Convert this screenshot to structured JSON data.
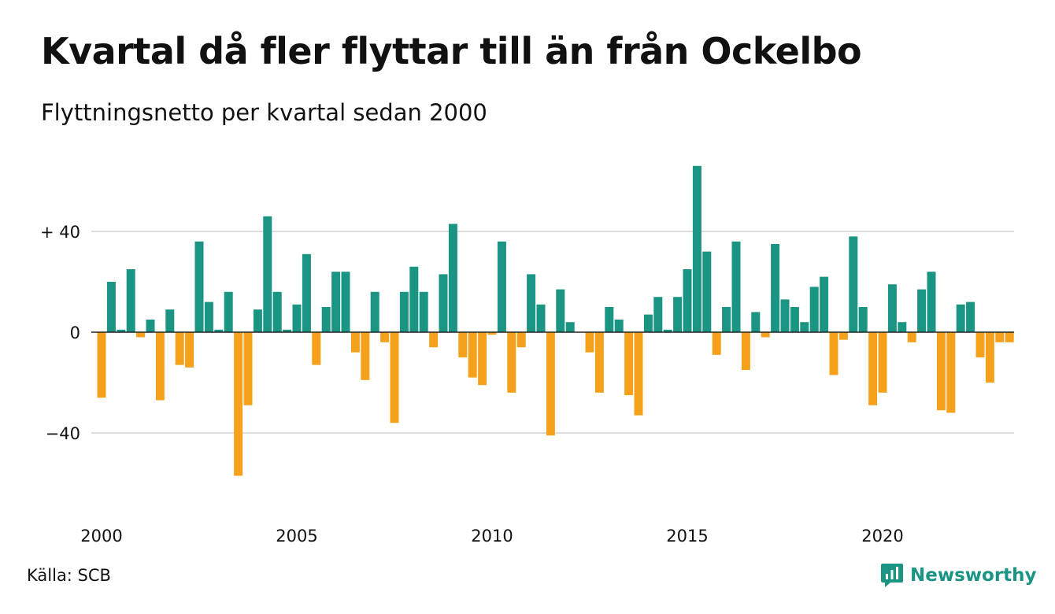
{
  "title": "Kvartal då fler flyttar till än från Ockelbo",
  "subtitle": "Flyttningsnetto per kvartal sedan 2000",
  "source": "Källa: SCB",
  "brand": {
    "label": "Newsworthy",
    "icon": "newsworthy-logo-icon",
    "color": "#1a9483"
  },
  "colors": {
    "positive": "#1a9483",
    "negative": "#f5a11c",
    "grid": "#dddddd",
    "zero_line": "#222222"
  },
  "chart_data": {
    "type": "bar",
    "title": "Kvartal då fler flyttar till än från Ockelbo",
    "subtitle": "Flyttningsnetto per kvartal sedan 2000",
    "xlabel": "",
    "ylabel": "",
    "start": "2000 Q1",
    "x_ticks": [
      "2000",
      "2005",
      "2010",
      "2015",
      "2020"
    ],
    "y_ticks": [
      {
        "value": 40,
        "label": "+ 40"
      },
      {
        "value": 0,
        "label": "0"
      },
      {
        "value": -40,
        "label": "−40"
      }
    ],
    "ylim": [
      -62,
      75
    ],
    "grid": true,
    "legend": "none",
    "values": [
      -26,
      20,
      1,
      25,
      -2,
      5,
      -27,
      9,
      -13,
      -14,
      36,
      12,
      1,
      16,
      -57,
      -29,
      9,
      46,
      16,
      1,
      11,
      31,
      -13,
      10,
      24,
      24,
      -8,
      -19,
      16,
      -4,
      -36,
      16,
      26,
      16,
      -6,
      23,
      43,
      -10,
      -18,
      -21,
      -1,
      36,
      -24,
      -6,
      23,
      11,
      -41,
      17,
      4,
      0,
      -8,
      -24,
      10,
      5,
      -25,
      -33,
      7,
      14,
      1,
      14,
      25,
      66,
      32,
      -9,
      10,
      36,
      -15,
      8,
      -2,
      35,
      13,
      10,
      4,
      18,
      22,
      -17,
      -3,
      38,
      10,
      -29,
      -24,
      19,
      4,
      -4,
      17,
      24,
      -31,
      -32,
      11,
      12,
      -10,
      -20,
      -4,
      -4
    ]
  }
}
